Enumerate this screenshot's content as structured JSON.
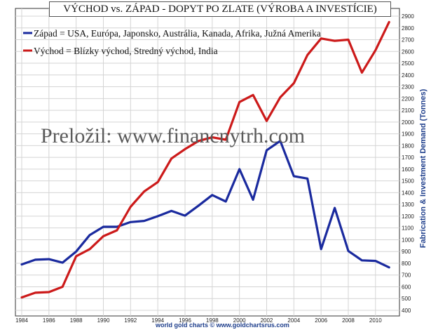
{
  "chart_data": {
    "type": "line",
    "title": "VÝCHOD vs. ZÁPAD - DOPYT PO ZLATE (VÝROBA A INVESTÍCIE)",
    "xlabel": "",
    "ylabel": "Fabrication & Investment Demand (Tonnes)",
    "x": [
      1984,
      1985,
      1986,
      1987,
      1988,
      1989,
      1990,
      1991,
      1992,
      1993,
      1994,
      1995,
      1996,
      1997,
      1998,
      1999,
      2000,
      2001,
      2002,
      2003,
      2004,
      2005,
      2006,
      2007,
      2008,
      2009,
      2010,
      2011
    ],
    "x_ticks": [
      "1984",
      "1986",
      "1988",
      "1990",
      "1992",
      "1994",
      "1996",
      "1998",
      "2000",
      "2002",
      "2004",
      "2006",
      "2008",
      "2010"
    ],
    "y_ticks": [
      400,
      500,
      600,
      700,
      800,
      900,
      1000,
      1100,
      1200,
      1300,
      1400,
      1500,
      1600,
      1700,
      1800,
      1900,
      2000,
      2100,
      2200,
      2300,
      2400,
      2500,
      2600,
      2700,
      2800,
      2900
    ],
    "xlim": [
      1984,
      2011.4
    ],
    "ylim": [
      400,
      2900
    ],
    "grid": true,
    "legend_position": "top-left",
    "series": [
      {
        "name": "Západ = USA, Európa, Japonsko, Austrália, Kanada, Afrika, Južná Amerika",
        "color": "#1a2a9e",
        "values": [
          790,
          830,
          835,
          805,
          900,
          1040,
          1110,
          1110,
          1150,
          1160,
          1200,
          1245,
          1205,
          1290,
          1380,
          1325,
          1600,
          1340,
          1760,
          1840,
          1540,
          1520,
          920,
          1270,
          905,
          825,
          820,
          765
        ]
      },
      {
        "name": "Východ = Blízky východ, Stredný východ, India",
        "color": "#cc1a1a",
        "values": [
          510,
          550,
          555,
          600,
          860,
          920,
          1030,
          1080,
          1280,
          1410,
          1490,
          1690,
          1770,
          1840,
          1870,
          1850,
          2170,
          2230,
          2010,
          2210,
          2330,
          2570,
          2710,
          2690,
          2700,
          2420,
          2610,
          2850
        ]
      }
    ]
  },
  "watermark_text": "Preložil: www.financnytrh.com",
  "source_credit": "world gold charts © www.goldchartsrus.com"
}
